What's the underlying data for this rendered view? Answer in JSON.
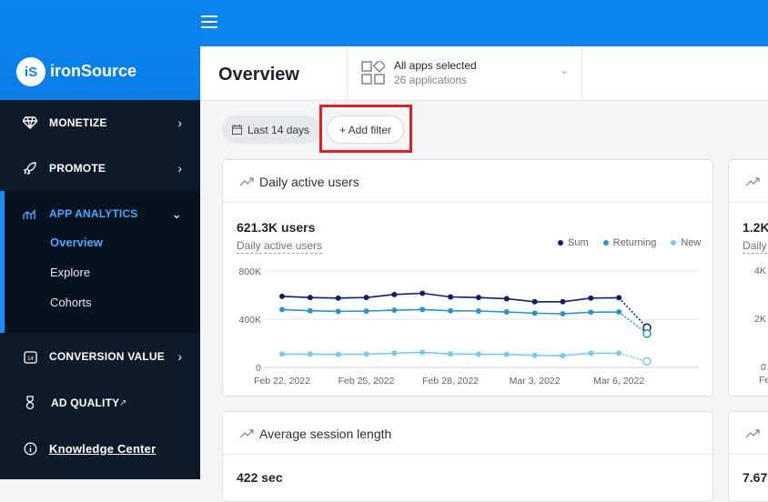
{
  "brand": {
    "logo_text": "iS",
    "name": "ironSource"
  },
  "nav": {
    "monetize": "MONETIZE",
    "promote": "PROMOTE",
    "app_analytics": "APP ANALYTICS",
    "sub": {
      "overview": "Overview",
      "explore": "Explore",
      "cohorts": "Cohorts"
    },
    "conversion_value": "CONVERSION VALUE",
    "ad_quality": "AD QUALITY",
    "knowledge_center": "Knowledge Center"
  },
  "header": {
    "title": "Overview",
    "apps_selected": "All apps selected",
    "apps_count": "26 applications"
  },
  "filters": {
    "date_range": "Last 14 days",
    "add_filter": "+ Add filter"
  },
  "cards": {
    "dau": {
      "title": "Daily active users",
      "total": "621.3K users",
      "metric_label": "Daily active users",
      "legend": [
        "Sum",
        "Returning",
        "New"
      ]
    },
    "dau_right": {
      "total": "1.2K",
      "metric_label": "Daily",
      "y_ticks": [
        "4K",
        "2K",
        "0"
      ],
      "x_tick": "Fe"
    },
    "session": {
      "title": "Average session length",
      "total": "422 sec"
    },
    "session_right": {
      "total": "7.67"
    }
  },
  "colors": {
    "sum": "#0d1f6e",
    "returning": "#2b93c9",
    "new": "#72cdf0",
    "accent": "#0a84f0"
  },
  "chart_data": {
    "type": "line",
    "title": "Daily active users",
    "x": [
      "Feb 22, 2022",
      "Feb 23, 2022",
      "Feb 24, 2022",
      "Feb 25, 2022",
      "Feb 26, 2022",
      "Feb 27, 2022",
      "Feb 28, 2022",
      "Mar 1, 2022",
      "Mar 2, 2022",
      "Mar 3, 2022",
      "Mar 4, 2022",
      "Mar 5, 2022",
      "Mar 6, 2022",
      "Mar 7, 2022"
    ],
    "x_ticks": [
      "Feb 22, 2022",
      "Feb 25, 2022",
      "Feb 28, 2022",
      "Mar 3, 2022",
      "Mar 6, 2022"
    ],
    "y_ticks": [
      "800K",
      "400K",
      "0"
    ],
    "ylim": [
      0,
      800000
    ],
    "grid": true,
    "legend_position": "top-right",
    "series": [
      {
        "name": "Sum",
        "values": [
          590000,
          580000,
          575000,
          580000,
          605000,
          615000,
          585000,
          580000,
          570000,
          545000,
          545000,
          575000,
          578000,
          330000
        ]
      },
      {
        "name": "Returning",
        "values": [
          480000,
          470000,
          465000,
          468000,
          475000,
          480000,
          470000,
          468000,
          460000,
          450000,
          445000,
          458000,
          460000,
          280000
        ]
      },
      {
        "name": "New",
        "values": [
          110000,
          110000,
          108000,
          110000,
          118000,
          125000,
          112000,
          110000,
          108000,
          100000,
          98000,
          118000,
          118000,
          50000
        ]
      }
    ]
  }
}
